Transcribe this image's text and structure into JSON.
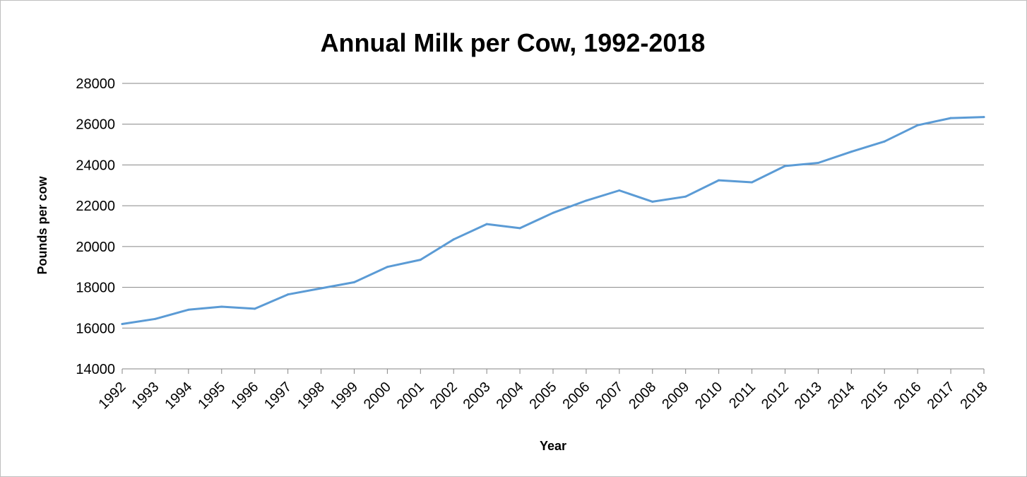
{
  "chart_data": {
    "type": "line",
    "title": "Annual Milk per Cow, 1992-2018",
    "xlabel": "Year",
    "ylabel": "Pounds per cow",
    "ylim": [
      14000,
      28000
    ],
    "yticks": [
      14000,
      16000,
      18000,
      20000,
      22000,
      24000,
      26000,
      28000
    ],
    "grid": true,
    "legend": "none",
    "line_color": "#5b9bd5",
    "categories": [
      "1992",
      "1993",
      "1994",
      "1995",
      "1996",
      "1997",
      "1998",
      "1999",
      "2000",
      "2001",
      "2002",
      "2003",
      "2004",
      "2005",
      "2006",
      "2007",
      "2008",
      "2009",
      "2010",
      "2011",
      "2012",
      "2013",
      "2014",
      "2015",
      "2016",
      "2017",
      "2018"
    ],
    "series": [
      {
        "values": [
          16200,
          16450,
          16900,
          17050,
          16950,
          17650,
          17950,
          18250,
          19000,
          19350,
          20350,
          21100,
          20900,
          21650,
          22250,
          22750,
          22200,
          22450,
          23250,
          23150,
          23950,
          24100,
          24650,
          25150,
          25950,
          26300,
          26350
        ]
      }
    ]
  }
}
